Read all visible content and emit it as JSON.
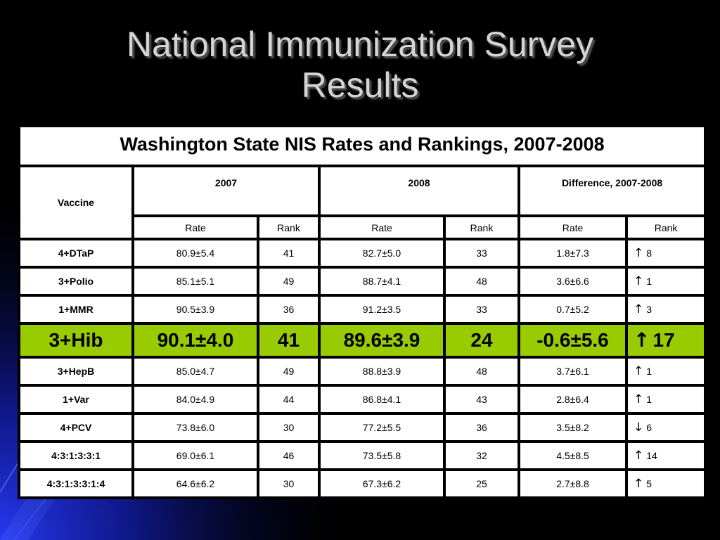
{
  "slide": {
    "title_line1": "National Immunization Survey",
    "title_line2": "Results"
  },
  "table": {
    "caption": "Washington State NIS Rates and Rankings, 2007-2008",
    "vaccine_header": "Vaccine",
    "groups": [
      "2007",
      "2008",
      "Difference, 2007-2008"
    ],
    "subheaders": [
      "Rate",
      "Rank",
      "Rate",
      "Rank",
      "Rate",
      "Rank"
    ],
    "rows": [
      {
        "vaccine": "4+DTaP",
        "rate2007": "80.9±5.4",
        "rank2007": "41",
        "rate2008": "82.7±5.0",
        "rank2008": "33",
        "rate_diff": "1.8±7.3",
        "rank_arrow": "↑",
        "rank_change": "8"
      },
      {
        "vaccine": "3+Polio",
        "rate2007": "85.1±5.1",
        "rank2007": "49",
        "rate2008": "88.7±4.1",
        "rank2008": "48",
        "rate_diff": "3.6±6.6",
        "rank_arrow": "↑",
        "rank_change": "1"
      },
      {
        "vaccine": "1+MMR",
        "rate2007": "90.5±3.9",
        "rank2007": "36",
        "rate2008": "91.2±3.5",
        "rank2008": "33",
        "rate_diff": "0.7±5.2",
        "rank_arrow": "↑",
        "rank_change": "3"
      },
      {
        "vaccine": "3+Hib",
        "rate2007": "90.1±4.0",
        "rank2007": "41",
        "rate2008": "89.6±3.9",
        "rank2008": "24",
        "rate_diff": "-0.6±5.6",
        "rank_arrow": "↑",
        "rank_change": "17"
      },
      {
        "vaccine": "3+HepB",
        "rate2007": "85.0±4.7",
        "rank2007": "49",
        "rate2008": "88.8±3.9",
        "rank2008": "48",
        "rate_diff": "3.7±6.1",
        "rank_arrow": "↑",
        "rank_change": "1"
      },
      {
        "vaccine": "1+Var",
        "rate2007": "84.0±4.9",
        "rank2007": "44",
        "rate2008": "86.8±4.1",
        "rank2008": "43",
        "rate_diff": "2.8±6.4",
        "rank_arrow": "↑",
        "rank_change": "1"
      },
      {
        "vaccine": "4+PCV",
        "rate2007": "73.8±6.0",
        "rank2007": "30",
        "rate2008": "77.2±5.5",
        "rank2008": "36",
        "rate_diff": "3.5±8.2",
        "rank_arrow": "↓",
        "rank_change": "6"
      },
      {
        "vaccine": "4:3:1:3:3:1",
        "rate2007": "69.0±6.1",
        "rank2007": "46",
        "rate2008": "73.5±5.8",
        "rank2008": "32",
        "rate_diff": "4.5±8.5",
        "rank_arrow": "↑",
        "rank_change": "14"
      },
      {
        "vaccine": "4:3:1:3:3:1:4",
        "rate2007": "64.6±6.2",
        "rank2007": "30",
        "rate2008": "67.3±6.2",
        "rank2008": "25",
        "rate_diff": "2.7±8.8",
        "rank_arrow": "↑",
        "rank_change": "5"
      }
    ]
  },
  "colors": {
    "background": "#000000",
    "title_text": "#d4d4d4",
    "highlight_row": "#99cc00",
    "glow_blue": "#1a2ad6"
  }
}
